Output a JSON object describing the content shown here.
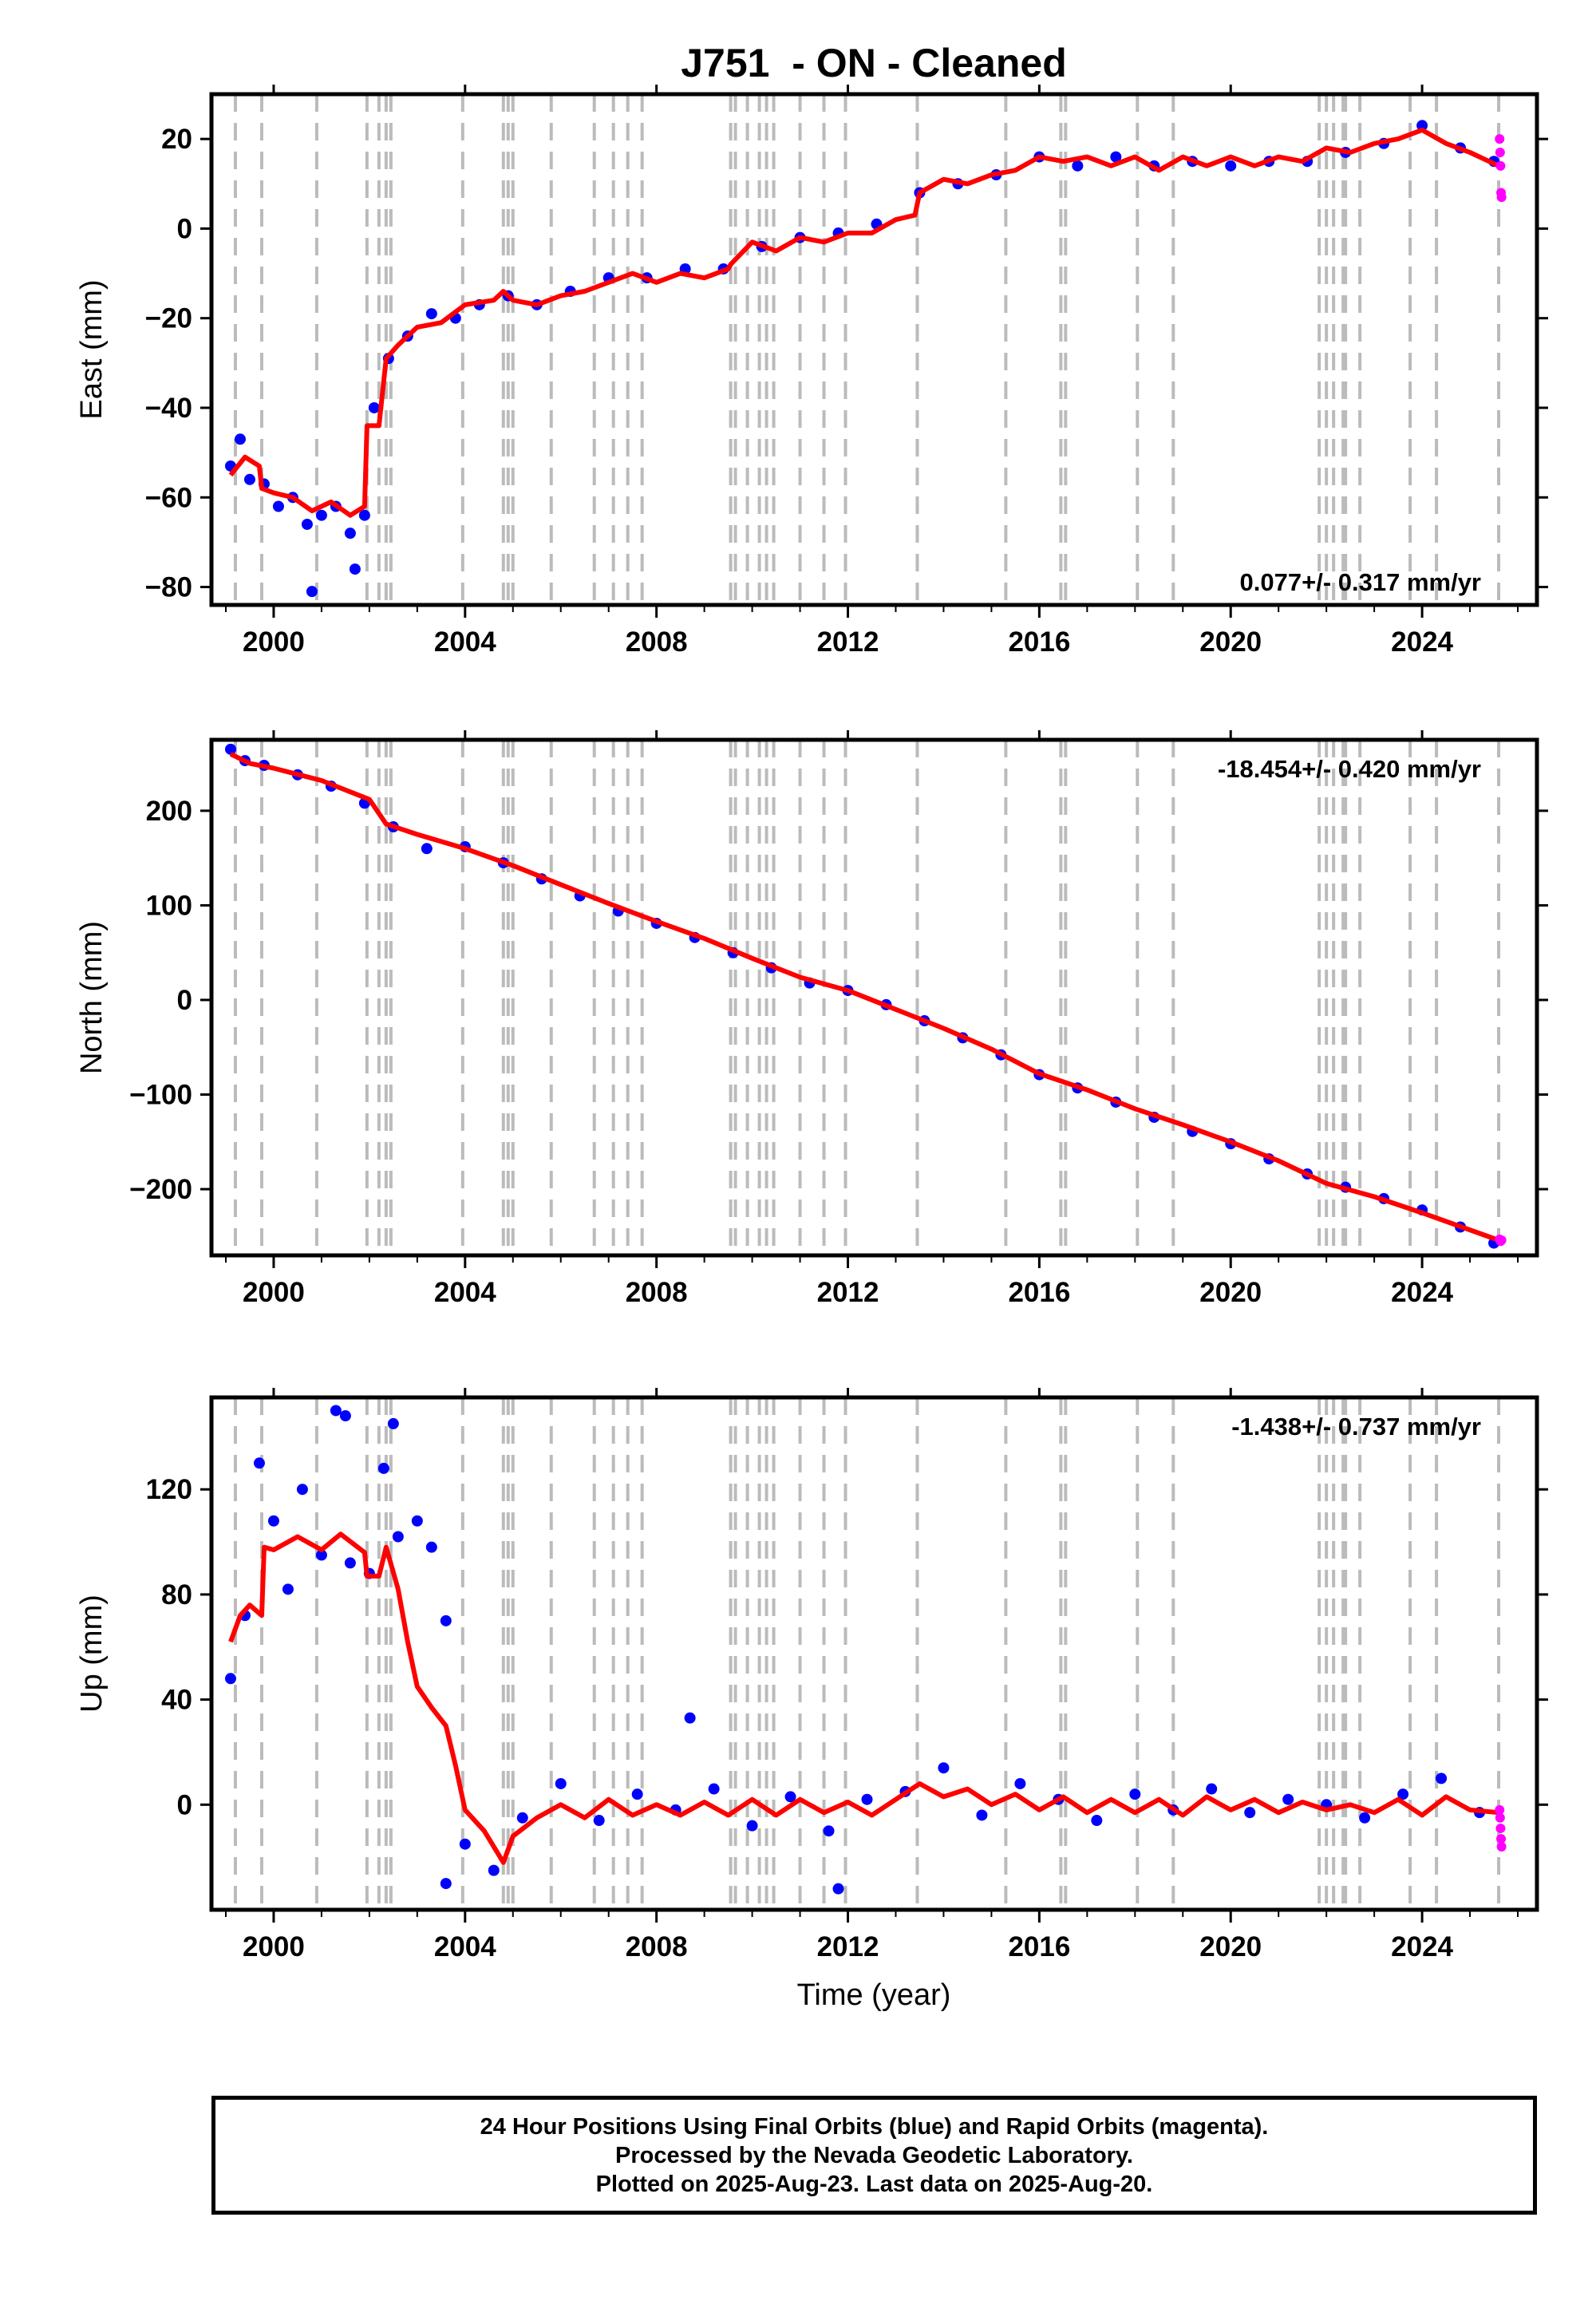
{
  "title": "J751  - ON - Cleaned",
  "xlabel": "Time (year)",
  "footer": {
    "line1": "24 Hour Positions Using Final Orbits (blue) and Rapid Orbits (magenta).",
    "line2": "Processed by the Nevada Geodetic Laboratory.",
    "line3": "Plotted on 2025-Aug-23. Last data on 2025-Aug-20."
  },
  "colors": {
    "final_orbits": "#0000ff",
    "rapid_orbits": "#ff00ff",
    "model": "#ff0000",
    "event_lines": "#bbbbbb"
  },
  "chart_data": [
    {
      "type": "scatter",
      "panel": "east",
      "ylabel": "East (mm)",
      "rate": "0.077+/- 0.317 mm/yr",
      "rate_position": "bottom-right",
      "xlim": [
        1998.7,
        2026.4
      ],
      "ylim": [
        -84,
        30
      ],
      "yticks": [
        -80,
        -60,
        -40,
        -20,
        0,
        20
      ],
      "xticks": [
        2000,
        2004,
        2008,
        2012,
        2016,
        2020,
        2024
      ],
      "grid": false,
      "event_lines": [
        1999.2,
        1999.75,
        2000.9,
        2001.95,
        2002.2,
        2002.35,
        2002.45,
        2003.95,
        2004.8,
        2004.9,
        2005.0,
        2005.8,
        2006.7,
        2007.1,
        2007.4,
        2007.7,
        2009.55,
        2009.65,
        2009.9,
        2010.15,
        2010.3,
        2010.45,
        2011.0,
        2011.5,
        2011.95,
        2013.45,
        2015.3,
        2016.45,
        2016.55,
        2018.05,
        2018.8,
        2021.85,
        2022.0,
        2022.15,
        2022.35,
        2022.4,
        2022.7,
        2023.75,
        2024.3,
        2025.6
      ],
      "model": {
        "x": [
          1999.1,
          1999.4,
          1999.7,
          1999.75,
          2000.0,
          2000.4,
          2000.8,
          2001.2,
          2001.6,
          2001.9,
          2001.95,
          2002.2,
          2002.35,
          2002.6,
          2003.0,
          2003.5,
          2004.0,
          2004.6,
          2004.8,
          2005.0,
          2005.5,
          2006.0,
          2006.5,
          2007.0,
          2007.5,
          2008.0,
          2008.5,
          2009.0,
          2009.5,
          2009.55,
          2010.0,
          2010.5,
          2011.0,
          2011.5,
          2012.0,
          2012.5,
          2013.0,
          2013.4,
          2013.5,
          2014.0,
          2014.5,
          2015.0,
          2015.5,
          2016.0,
          2016.5,
          2017.0,
          2017.5,
          2018.0,
          2018.5,
          2019.0,
          2019.5,
          2020.0,
          2020.5,
          2021.0,
          2021.5,
          2022.0,
          2022.5,
          2023.0,
          2023.5,
          2024.0,
          2024.5,
          2025.0,
          2025.6
        ],
        "y": [
          -55,
          -51,
          -53,
          -58,
          -59,
          -60,
          -63,
          -61,
          -64,
          -62,
          -44,
          -44,
          -29,
          -26,
          -22,
          -21,
          -17,
          -16,
          -14,
          -16,
          -17,
          -15,
          -14,
          -12,
          -10,
          -12,
          -10,
          -11,
          -9,
          -8,
          -3,
          -5,
          -2,
          -3,
          -1,
          -1,
          2,
          3,
          8,
          11,
          10,
          12,
          13,
          16,
          15,
          16,
          14,
          16,
          13,
          16,
          14,
          16,
          14,
          16,
          15,
          18,
          17,
          19,
          20,
          22,
          19,
          17,
          14
        ]
      },
      "final_points": {
        "x": [
          1999.1,
          1999.3,
          1999.5,
          1999.8,
          2000.1,
          2000.4,
          2000.7,
          2001.0,
          2001.3,
          2001.6,
          2001.9,
          2002.1,
          2002.4,
          2002.8,
          2003.3,
          2003.8,
          2004.3,
          2004.9,
          2005.5,
          2006.2,
          2007.0,
          2007.8,
          2008.6,
          2009.4,
          2010.2,
          2011.0,
          2011.8,
          2012.6,
          2013.5,
          2014.3,
          2015.1,
          2016.0,
          2016.8,
          2017.6,
          2018.4,
          2019.2,
          2020.0,
          2020.8,
          2021.6,
          2022.4,
          2023.2,
          2024.0,
          2024.8,
          2025.5,
          2000.8,
          2001.7
        ],
        "y": [
          -53,
          -47,
          -56,
          -57,
          -62,
          -60,
          -66,
          -64,
          -62,
          -68,
          -64,
          -40,
          -29,
          -24,
          -19,
          -20,
          -17,
          -15,
          -17,
          -14,
          -11,
          -11,
          -9,
          -9,
          -4,
          -2,
          -1,
          1,
          8,
          10,
          12,
          16,
          14,
          16,
          14,
          15,
          14,
          15,
          15,
          17,
          19,
          23,
          18,
          15,
          -81,
          -76
        ]
      },
      "rapid_points": {
        "x": [
          2025.62,
          2025.63,
          2025.64,
          2025.65,
          2025.66
        ],
        "y": [
          20,
          17,
          14,
          8,
          7
        ]
      }
    },
    {
      "type": "scatter",
      "panel": "north",
      "ylabel": "North (mm)",
      "rate": "-18.454+/- 0.420 mm/yr",
      "rate_position": "top-right",
      "xlim": [
        1998.7,
        2026.4
      ],
      "ylim": [
        -270,
        275
      ],
      "yticks": [
        -200,
        -100,
        0,
        100,
        200
      ],
      "xticks": [
        2000,
        2004,
        2008,
        2012,
        2016,
        2020,
        2024
      ],
      "grid": false,
      "event_lines": [
        1999.2,
        1999.75,
        2000.9,
        2001.95,
        2002.2,
        2002.35,
        2002.45,
        2003.95,
        2004.8,
        2004.9,
        2005.0,
        2005.8,
        2006.7,
        2007.1,
        2007.4,
        2007.7,
        2009.55,
        2009.65,
        2009.9,
        2010.15,
        2010.3,
        2010.45,
        2011.0,
        2011.5,
        2011.95,
        2013.45,
        2015.3,
        2016.45,
        2016.55,
        2018.05,
        2018.8,
        2021.85,
        2022.0,
        2022.15,
        2022.35,
        2022.4,
        2022.7,
        2023.75,
        2024.3,
        2025.6
      ],
      "model": {
        "x": [
          1999.1,
          1999.5,
          2000.0,
          2001.0,
          2002.0,
          2002.35,
          2003.0,
          2004.0,
          2005.0,
          2006.0,
          2007.0,
          2008.0,
          2009.0,
          2010.0,
          2011.0,
          2012.0,
          2013.0,
          2014.0,
          2015.0,
          2016.0,
          2017.0,
          2018.0,
          2019.0,
          2020.0,
          2021.0,
          2022.0,
          2023.0,
          2024.0,
          2025.6
        ],
        "y": [
          260,
          250,
          245,
          232,
          212,
          186,
          175,
          160,
          142,
          122,
          102,
          83,
          65,
          44,
          24,
          10,
          -10,
          -30,
          -52,
          -78,
          -95,
          -115,
          -132,
          -150,
          -170,
          -194,
          -208,
          -225,
          -254
        ]
      },
      "final_points": {
        "x": [
          1999.1,
          1999.4,
          1999.8,
          2000.5,
          2001.2,
          2001.9,
          2002.5,
          2003.2,
          2004.0,
          2004.8,
          2005.6,
          2006.4,
          2007.2,
          2008.0,
          2008.8,
          2009.6,
          2010.4,
          2011.2,
          2012.0,
          2012.8,
          2013.6,
          2014.4,
          2015.2,
          2016.0,
          2016.8,
          2017.6,
          2018.4,
          2019.2,
          2020.0,
          2020.8,
          2021.6,
          2022.4,
          2023.2,
          2024.0,
          2024.8,
          2025.5
        ],
        "y": [
          265,
          253,
          248,
          238,
          226,
          208,
          183,
          160,
          162,
          145,
          128,
          110,
          94,
          81,
          66,
          50,
          34,
          18,
          10,
          -5,
          -22,
          -40,
          -58,
          -79,
          -93,
          -108,
          -124,
          -139,
          -152,
          -168,
          -184,
          -198,
          -210,
          -222,
          -240,
          -257
        ]
      },
      "rapid_points": {
        "x": [
          2025.62,
          2025.64,
          2025.66
        ],
        "y": [
          -253,
          -255,
          -254
        ]
      }
    },
    {
      "type": "scatter",
      "panel": "up",
      "ylabel": "Up (mm)",
      "rate": "-1.438+/- 0.737 mm/yr",
      "rate_position": "top-right",
      "xlim": [
        1998.7,
        2026.4
      ],
      "ylim": [
        -40,
        155
      ],
      "yticks": [
        0,
        40,
        80,
        120
      ],
      "xticks": [
        2000,
        2004,
        2008,
        2012,
        2016,
        2020,
        2024
      ],
      "grid": false,
      "event_lines": [
        1999.2,
        1999.75,
        2000.9,
        2001.95,
        2002.2,
        2002.35,
        2002.45,
        2003.95,
        2004.8,
        2004.9,
        2005.0,
        2005.8,
        2006.7,
        2007.1,
        2007.4,
        2007.7,
        2009.55,
        2009.65,
        2009.9,
        2010.15,
        2010.3,
        2010.45,
        2011.0,
        2011.5,
        2011.95,
        2013.45,
        2015.3,
        2016.45,
        2016.55,
        2018.05,
        2018.8,
        2021.85,
        2022.0,
        2022.15,
        2022.35,
        2022.4,
        2022.7,
        2023.75,
        2024.3,
        2025.6
      ],
      "model": {
        "x": [
          1999.1,
          1999.3,
          1999.5,
          1999.75,
          1999.8,
          2000.0,
          2000.5,
          2001.0,
          2001.4,
          2001.9,
          2001.95,
          2002.2,
          2002.35,
          2002.6,
          2002.8,
          2003.0,
          2003.3,
          2003.6,
          2003.8,
          2004.0,
          2004.4,
          2004.8,
          2005.0,
          2005.5,
          2006.0,
          2006.5,
          2007.0,
          2007.5,
          2008.0,
          2008.5,
          2009.0,
          2009.5,
          2010.0,
          2010.5,
          2011.0,
          2011.5,
          2012.0,
          2012.5,
          2013.0,
          2013.5,
          2014.0,
          2014.5,
          2015.0,
          2015.5,
          2016.0,
          2016.5,
          2017.0,
          2017.5,
          2018.0,
          2018.5,
          2019.0,
          2019.5,
          2020.0,
          2020.5,
          2021.0,
          2021.5,
          2022.0,
          2022.5,
          2023.0,
          2023.5,
          2024.0,
          2024.5,
          2025.0,
          2025.6
        ],
        "y": [
          62,
          72,
          76,
          72,
          98,
          97,
          102,
          97,
          103,
          96,
          87,
          87,
          98,
          82,
          62,
          45,
          37,
          30,
          15,
          -2,
          -10,
          -22,
          -12,
          -5,
          0,
          -5,
          2,
          -4,
          0,
          -4,
          1,
          -4,
          2,
          -4,
          2,
          -3,
          1,
          -4,
          2,
          8,
          3,
          6,
          0,
          4,
          -2,
          3,
          -3,
          2,
          -3,
          2,
          -4,
          3,
          -2,
          2,
          -3,
          1,
          -2,
          0,
          -3,
          2,
          -4,
          3,
          -2,
          -3
        ]
      },
      "final_points": {
        "x": [
          1999.1,
          1999.4,
          1999.7,
          2000.0,
          2000.3,
          2000.6,
          2001.0,
          2001.3,
          2001.6,
          2002.0,
          2002.3,
          2002.6,
          2003.0,
          2003.3,
          2003.6,
          2004.0,
          2004.6,
          2005.2,
          2006.0,
          2006.8,
          2007.6,
          2008.4,
          2009.2,
          2010.0,
          2010.8,
          2011.6,
          2012.4,
          2013.2,
          2014.0,
          2014.8,
          2015.6,
          2016.4,
          2017.2,
          2018.0,
          2018.8,
          2019.6,
          2020.4,
          2021.2,
          2022.0,
          2022.8,
          2023.6,
          2024.4,
          2025.2,
          2001.5,
          2002.5,
          2008.7,
          2011.8,
          2003.6
        ],
        "y": [
          48,
          72,
          130,
          108,
          82,
          120,
          95,
          150,
          92,
          88,
          128,
          102,
          108,
          98,
          70,
          -15,
          -25,
          -5,
          8,
          -6,
          4,
          -2,
          6,
          -8,
          3,
          -10,
          2,
          5,
          14,
          -4,
          8,
          2,
          -6,
          4,
          -2,
          6,
          -3,
          2,
          0,
          -5,
          4,
          10,
          -3,
          148,
          145,
          33,
          -32,
          -30
        ]
      },
      "rapid_points": {
        "x": [
          2025.62,
          2025.63,
          2025.64,
          2025.65,
          2025.66
        ],
        "y": [
          -2,
          -5,
          -9,
          -13,
          -16
        ]
      }
    }
  ]
}
